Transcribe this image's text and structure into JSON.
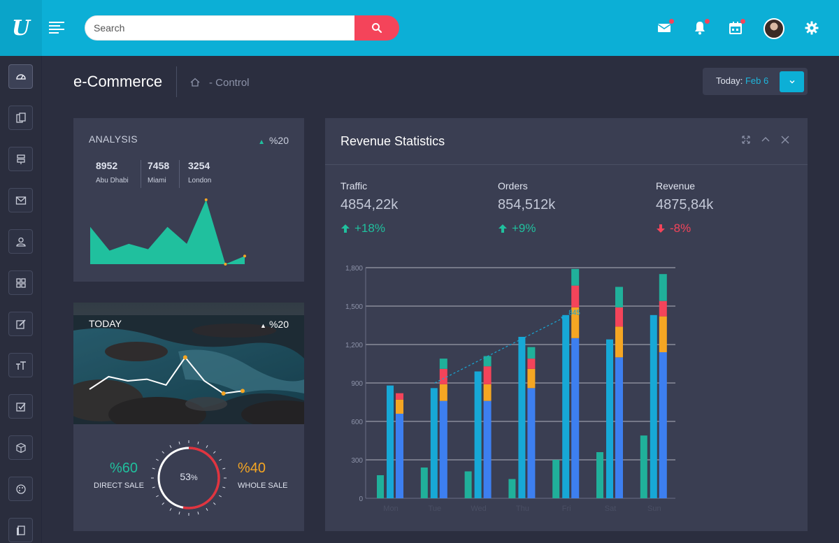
{
  "header": {
    "logo": "U",
    "search_placeholder": "Search",
    "icons": [
      "menu-icon",
      "search-icon",
      "mail-icon",
      "bell-icon",
      "calendar-icon",
      "avatar",
      "gear-icon"
    ],
    "colors": {
      "bar": "#0cafd6",
      "badge": "#f4445a"
    }
  },
  "sidebar": {
    "items": [
      "dashboard-icon",
      "documents-icon",
      "sign-icon",
      "mail-icon",
      "user-icon",
      "grid-icon",
      "edit-icon",
      "typography-icon",
      "checkbox-icon",
      "box-icon",
      "palette-icon",
      "copy-icon"
    ]
  },
  "page": {
    "title": "e-Commerce",
    "breadcrumb": "- Control",
    "today_label": "Today:",
    "today_value": "Feb 6"
  },
  "analysis": {
    "title": "ANALYSIS",
    "trend": "%20",
    "cities": [
      {
        "value": "8952",
        "name": "Abu Dhabi"
      },
      {
        "value": "7458",
        "name": "Miami"
      },
      {
        "value": "3254",
        "name": "London"
      }
    ]
  },
  "today_card": {
    "title": "TODAY",
    "trend": "%20",
    "direct_value": "%60",
    "direct_label": "DIRECT SALE",
    "whole_value": "%40",
    "whole_label": "WHOLE SALE",
    "gauge_value": "53",
    "gauge_unit": "%",
    "gauge_fraction": 0.53
  },
  "revenue": {
    "title": "Revenue Statistics",
    "stats": [
      {
        "label": "Traffic",
        "value": "4854,22k",
        "change": "+18%",
        "direction": "up"
      },
      {
        "label": "Orders",
        "value": "854,512k",
        "change": "+9%",
        "direction": "up"
      },
      {
        "label": "Revenue",
        "value": "4875,84k",
        "change": "-8%",
        "direction": "down"
      }
    ]
  },
  "chart_data": [
    {
      "type": "area",
      "title": "",
      "x": [
        1,
        2,
        3,
        4,
        5,
        6,
        7,
        8,
        9
      ],
      "values": [
        55,
        20,
        30,
        22,
        55,
        30,
        95,
        0,
        12
      ],
      "colors": {
        "fill": "#20c09e",
        "marker": "#f5a623"
      }
    },
    {
      "type": "line",
      "title": "",
      "x": [
        1,
        2,
        3,
        4,
        5,
        6,
        7,
        8,
        9
      ],
      "values": [
        30,
        45,
        40,
        42,
        35,
        68,
        40,
        25,
        28
      ],
      "colors": {
        "line": "#ffffff",
        "marker": "#f5a623"
      }
    },
    {
      "type": "bar",
      "title": "",
      "categories": [
        "Mon",
        "Tue",
        "Wed",
        "Thu",
        "Fri",
        "Sat",
        "Sun"
      ],
      "ylim": [
        0,
        1800
      ],
      "yticks": [
        "0",
        "300",
        "600",
        "900",
        "1,200",
        "1,500",
        "1,800"
      ],
      "series": [
        {
          "values": [
            180,
            240,
            210,
            150,
            300,
            360,
            490
          ],
          "color": "#20b09a"
        },
        {
          "values": [
            880,
            860,
            990,
            1260,
            1430,
            1240,
            1430
          ],
          "color": "#17a8d6"
        },
        {
          "values": [
            660,
            760,
            760,
            860,
            1250,
            1100,
            1140
          ],
          "color": "#3d7ff0"
        },
        {
          "values": [
            110,
            130,
            130,
            150,
            240,
            240,
            280
          ],
          "color": "#f5a623"
        },
        {
          "values": [
            50,
            120,
            140,
            80,
            170,
            150,
            120
          ],
          "color": "#f4445a"
        },
        {
          "values": [
            0,
            80,
            80,
            90,
            130,
            160,
            210
          ],
          "color": "#20b09a"
        }
      ],
      "trend": {
        "from": 1,
        "to": 4,
        "values": [
          900,
          1420
        ],
        "label": "845"
      }
    }
  ]
}
